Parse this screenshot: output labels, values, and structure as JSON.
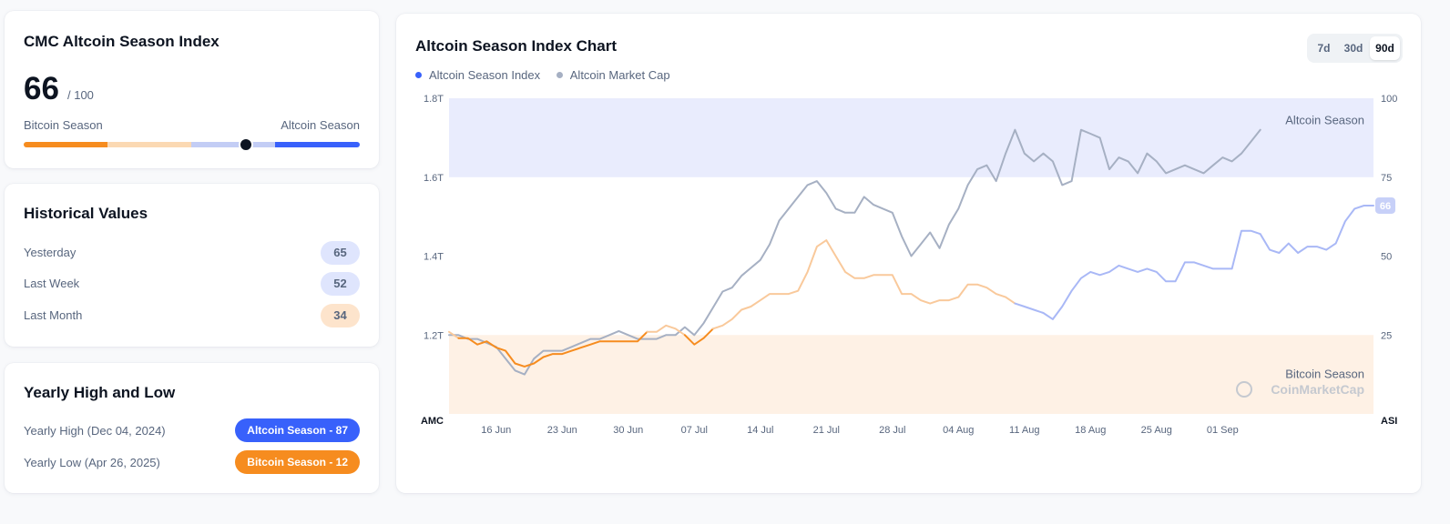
{
  "index_card": {
    "title": "CMC Altcoin Season Index",
    "value": "66",
    "denominator": "/ 100",
    "left_label": "Bitcoin Season",
    "right_label": "Altcoin Season",
    "gauge_value": 66,
    "gauge_max": 100
  },
  "historical": {
    "title": "Historical Values",
    "rows": [
      {
        "label": "Yesterday",
        "value": "65"
      },
      {
        "label": "Last Week",
        "value": "52"
      },
      {
        "label": "Last Month",
        "value": "34"
      }
    ]
  },
  "yearly": {
    "title": "Yearly High and Low",
    "high_label": "Yearly High",
    "high_date": "(Dec 04, 2024)",
    "high_badge": "Altcoin Season - 87",
    "low_label": "Yearly Low",
    "low_date": "(Apr 26, 2025)",
    "low_badge": "Bitcoin Season - 12"
  },
  "chart_card": {
    "title": "Altcoin Season Index Chart",
    "ranges": [
      "7d",
      "30d",
      "90d"
    ],
    "active_range": "90d",
    "legend": [
      {
        "label": "Altcoin Season Index",
        "color": "#3861fb"
      },
      {
        "label": "Altcoin Market Cap",
        "color": "#a6b0c3"
      }
    ],
    "left_axis_title": "AMC",
    "right_axis_title": "ASI",
    "altcoin_band_label": "Altcoin Season",
    "bitcoin_band_label": "Bitcoin Season",
    "watermark": "CoinMarketCap",
    "current_value_badge": "66"
  },
  "colors": {
    "bitcoin_orange": "#f68c1f",
    "altcoin_blue": "#3861fb",
    "market_cap_gray": "#a6b0c3",
    "altcoin_band": "#e9ecfd",
    "bitcoin_band": "#fef1e5"
  },
  "chart_data": {
    "type": "line",
    "x_ticks": [
      "16 Jun",
      "23 Jun",
      "30 Jun",
      "07 Jul",
      "14 Jul",
      "21 Jul",
      "28 Jul",
      "04 Aug",
      "11 Aug",
      "18 Aug",
      "25 Aug",
      "01 Sep"
    ],
    "x_range": [
      "11 Jun",
      "09 Sep"
    ],
    "left_axis": {
      "ticks": [
        "1.2T",
        "1.4T",
        "1.6T",
        "1.8T"
      ],
      "range": [
        1.0,
        1.8
      ],
      "unit": "T"
    },
    "right_axis": {
      "ticks": [
        "25",
        "50",
        "75",
        "100"
      ],
      "range": [
        0,
        100
      ]
    },
    "bands": [
      {
        "label": "Altcoin Season",
        "from": 75,
        "to": 100
      },
      {
        "label": "Bitcoin Season",
        "from": 0,
        "to": 25
      }
    ],
    "series": [
      {
        "axis": "right",
        "points": [
          [
            0,
            26
          ],
          [
            1,
            24
          ],
          [
            2,
            24
          ],
          [
            3,
            22
          ],
          [
            4,
            23
          ],
          [
            5,
            21
          ],
          [
            6,
            20
          ],
          [
            7,
            16
          ],
          [
            8,
            15
          ],
          [
            9,
            16
          ],
          [
            10,
            18
          ],
          [
            11,
            19
          ],
          [
            12,
            19
          ],
          [
            13,
            20
          ],
          [
            14,
            21
          ],
          [
            15,
            22
          ],
          [
            16,
            23
          ],
          [
            17,
            23
          ],
          [
            18,
            23
          ],
          [
            19,
            23
          ],
          [
            20,
            23
          ],
          [
            21,
            26
          ],
          [
            22,
            26
          ],
          [
            23,
            28
          ],
          [
            24,
            27
          ],
          [
            25,
            25
          ],
          [
            26,
            22
          ],
          [
            27,
            24
          ],
          [
            28,
            27
          ],
          [
            29,
            28
          ],
          [
            30,
            30
          ],
          [
            31,
            33
          ],
          [
            32,
            34
          ],
          [
            33,
            36
          ],
          [
            34,
            38
          ],
          [
            35,
            38
          ],
          [
            36,
            38
          ],
          [
            37,
            39
          ],
          [
            38,
            45
          ],
          [
            39,
            53
          ],
          [
            40,
            55
          ],
          [
            41,
            50
          ],
          [
            42,
            45
          ],
          [
            43,
            43
          ],
          [
            44,
            43
          ],
          [
            45,
            44
          ],
          [
            46,
            44
          ],
          [
            47,
            44
          ],
          [
            48,
            38
          ],
          [
            49,
            38
          ],
          [
            50,
            36
          ],
          [
            51,
            35
          ],
          [
            52,
            36
          ],
          [
            53,
            36
          ],
          [
            54,
            37
          ],
          [
            55,
            41
          ],
          [
            56,
            41
          ],
          [
            57,
            40
          ],
          [
            58,
            38
          ],
          [
            59,
            37
          ],
          [
            60,
            35
          ],
          [
            61,
            34
          ],
          [
            62,
            33
          ],
          [
            63,
            32
          ],
          [
            64,
            30
          ],
          [
            65,
            34
          ],
          [
            66,
            39
          ],
          [
            67,
            43
          ],
          [
            68,
            45
          ],
          [
            69,
            44
          ],
          [
            70,
            45
          ],
          [
            71,
            47
          ],
          [
            72,
            46
          ],
          [
            73,
            45
          ],
          [
            74,
            46
          ],
          [
            75,
            45
          ],
          [
            76,
            42
          ],
          [
            77,
            42
          ],
          [
            78,
            48
          ],
          [
            79,
            48
          ],
          [
            80,
            47
          ],
          [
            81,
            46
          ],
          [
            82,
            46
          ],
          [
            83,
            46
          ],
          [
            84,
            58
          ],
          [
            85,
            58
          ],
          [
            86,
            57
          ],
          [
            87,
            52
          ],
          [
            88,
            51
          ],
          [
            89,
            54
          ],
          [
            90,
            51
          ],
          [
            91,
            53
          ],
          [
            92,
            53
          ],
          [
            93,
            52
          ],
          [
            94,
            54
          ],
          [
            95,
            61
          ],
          [
            96,
            65
          ],
          [
            97,
            66
          ],
          [
            98,
            66
          ]
        ]
      },
      {
        "axis": "left",
        "points": [
          [
            0,
            1.2
          ],
          [
            1,
            1.2
          ],
          [
            2,
            1.19
          ],
          [
            3,
            1.19
          ],
          [
            4,
            1.18
          ],
          [
            5,
            1.17
          ],
          [
            6,
            1.14
          ],
          [
            7,
            1.11
          ],
          [
            8,
            1.1
          ],
          [
            9,
            1.14
          ],
          [
            10,
            1.16
          ],
          [
            11,
            1.16
          ],
          [
            12,
            1.16
          ],
          [
            13,
            1.17
          ],
          [
            14,
            1.18
          ],
          [
            15,
            1.19
          ],
          [
            16,
            1.19
          ],
          [
            17,
            1.2
          ],
          [
            18,
            1.21
          ],
          [
            19,
            1.2
          ],
          [
            20,
            1.19
          ],
          [
            21,
            1.19
          ],
          [
            22,
            1.19
          ],
          [
            23,
            1.2
          ],
          [
            24,
            1.2
          ],
          [
            25,
            1.22
          ],
          [
            26,
            1.2
          ],
          [
            27,
            1.23
          ],
          [
            28,
            1.27
          ],
          [
            29,
            1.31
          ],
          [
            30,
            1.32
          ],
          [
            31,
            1.35
          ],
          [
            32,
            1.37
          ],
          [
            33,
            1.39
          ],
          [
            34,
            1.43
          ],
          [
            35,
            1.49
          ],
          [
            36,
            1.52
          ],
          [
            37,
            1.55
          ],
          [
            38,
            1.58
          ],
          [
            39,
            1.59
          ],
          [
            40,
            1.56
          ],
          [
            41,
            1.52
          ],
          [
            42,
            1.51
          ],
          [
            43,
            1.51
          ],
          [
            44,
            1.55
          ],
          [
            45,
            1.53
          ],
          [
            46,
            1.52
          ],
          [
            47,
            1.51
          ],
          [
            48,
            1.45
          ],
          [
            49,
            1.4
          ],
          [
            50,
            1.43
          ],
          [
            51,
            1.46
          ],
          [
            52,
            1.42
          ],
          [
            53,
            1.48
          ],
          [
            54,
            1.52
          ],
          [
            55,
            1.58
          ],
          [
            56,
            1.62
          ],
          [
            57,
            1.63
          ],
          [
            58,
            1.59
          ],
          [
            59,
            1.66
          ],
          [
            60,
            1.72
          ],
          [
            61,
            1.66
          ],
          [
            62,
            1.64
          ],
          [
            63,
            1.66
          ],
          [
            64,
            1.64
          ],
          [
            65,
            1.58
          ],
          [
            66,
            1.59
          ],
          [
            67,
            1.72
          ],
          [
            68,
            1.71
          ],
          [
            69,
            1.7
          ],
          [
            70,
            1.62
          ],
          [
            71,
            1.65
          ],
          [
            72,
            1.64
          ],
          [
            73,
            1.61
          ],
          [
            74,
            1.66
          ],
          [
            75,
            1.64
          ],
          [
            76,
            1.61
          ],
          [
            77,
            1.62
          ],
          [
            78,
            1.63
          ],
          [
            79,
            1.62
          ],
          [
            80,
            1.61
          ],
          [
            81,
            1.63
          ],
          [
            82,
            1.65
          ],
          [
            83,
            1.64
          ],
          [
            84,
            1.66
          ],
          [
            85,
            1.69
          ],
          [
            86,
            1.72
          ]
        ]
      }
    ]
  }
}
